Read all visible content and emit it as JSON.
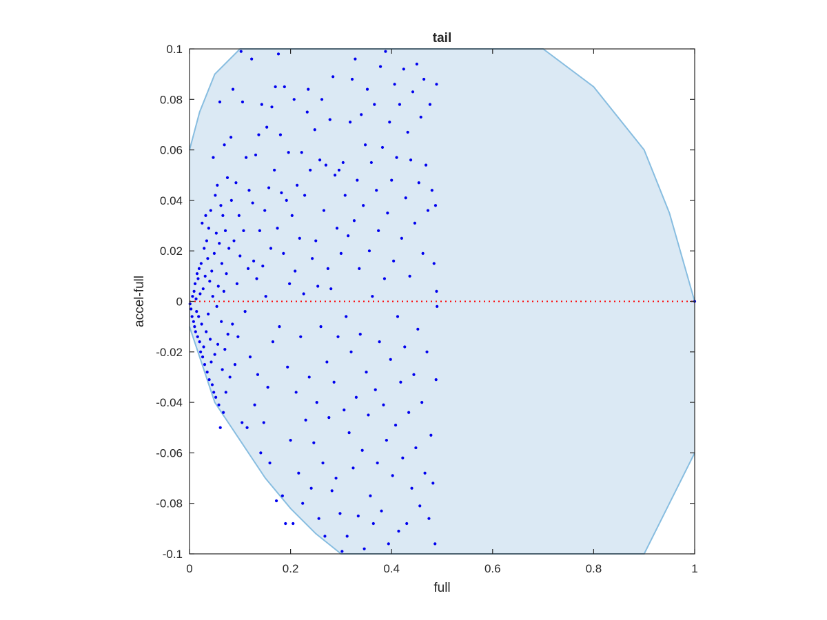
{
  "chart_data": {
    "type": "scatter",
    "title": "tail",
    "xlabel": "full",
    "ylabel": "accel-full",
    "xlim": [
      0,
      1
    ],
    "ylim": [
      -0.1,
      0.1
    ],
    "x_ticks": [
      "0",
      "0.2",
      "0.4",
      "0.6",
      "0.8",
      "1"
    ],
    "y_ticks": [
      "-0.1",
      "-0.08",
      "-0.06",
      "-0.04",
      "-0.02",
      "0",
      "0.02",
      "0.04",
      "0.06",
      "0.08",
      "0.1"
    ],
    "grid": false,
    "legend": "none",
    "region": {
      "description": "shaded feasible region bounded by curves, spanning x 0-1",
      "upper_boundary": [
        [
          0,
          0.06
        ],
        [
          0.02,
          0.075
        ],
        [
          0.05,
          0.09
        ],
        [
          0.1,
          0.1
        ],
        [
          0.7,
          0.1
        ],
        [
          0.8,
          0.085
        ],
        [
          0.9,
          0.06
        ],
        [
          0.95,
          0.035
        ],
        [
          1.0,
          0
        ]
      ],
      "lower_boundary": [
        [
          0,
          -0.01
        ],
        [
          0.05,
          -0.04
        ],
        [
          0.1,
          -0.055
        ],
        [
          0.15,
          -0.07
        ],
        [
          0.2,
          -0.082
        ],
        [
          0.25,
          -0.092
        ],
        [
          0.3,
          -0.1
        ],
        [
          0.9,
          -0.1
        ],
        [
          0.95,
          -0.08
        ],
        [
          1.0,
          -0.06
        ]
      ]
    },
    "reference_line": {
      "y": 0,
      "style": "dotted",
      "color": "#ff0000"
    },
    "points_note": "approximately 1000 blue points; dense cluster near x=0, y=0 and spread for 0 < x < 0.49",
    "points": [
      [
        0.001,
        -0.001
      ],
      [
        0.003,
        -0.003
      ],
      [
        0.005,
        -0.006
      ],
      [
        0.006,
        0.002
      ],
      [
        0.008,
        -0.008
      ],
      [
        0.009,
        0.004
      ],
      [
        0.01,
        -0.01
      ],
      [
        0.011,
        0.007
      ],
      [
        0.012,
        -0.012
      ],
      [
        0.013,
        0.001
      ],
      [
        0.014,
        -0.004
      ],
      [
        0.015,
        0.011
      ],
      [
        0.016,
        -0.014
      ],
      [
        0.017,
        0.009
      ],
      [
        0.018,
        -0.006
      ],
      [
        0.019,
        0.013
      ],
      [
        0.02,
        -0.016
      ],
      [
        0.021,
        0.003
      ],
      [
        0.022,
        -0.02
      ],
      [
        0.023,
        0.015
      ],
      [
        0.024,
        -0.009
      ],
      [
        0.025,
        0.031
      ],
      [
        0.026,
        -0.022
      ],
      [
        0.027,
        0.005
      ],
      [
        0.028,
        -0.018
      ],
      [
        0.029,
        0.021
      ],
      [
        0.03,
        -0.025
      ],
      [
        0.031,
        0.01
      ],
      [
        0.032,
        0.034
      ],
      [
        0.033,
        -0.012
      ],
      [
        0.034,
        0.024
      ],
      [
        0.035,
        -0.028
      ],
      [
        0.036,
        0.017
      ],
      [
        0.037,
        -0.005
      ],
      [
        0.038,
        0.029
      ],
      [
        0.039,
        -0.031
      ],
      [
        0.04,
        0.008
      ],
      [
        0.041,
        -0.015
      ],
      [
        0.042,
        0.036
      ],
      [
        0.043,
        -0.024
      ],
      [
        0.044,
        0.012
      ],
      [
        0.045,
        -0.033
      ],
      [
        0.046,
        0.002
      ],
      [
        0.047,
        0.057
      ],
      [
        0.048,
        -0.036
      ],
      [
        0.049,
        0.019
      ],
      [
        0.05,
        -0.021
      ],
      [
        0.051,
        0.042
      ],
      [
        0.052,
        -0.038
      ],
      [
        0.053,
        0.027
      ],
      [
        0.054,
        -0.002
      ],
      [
        0.055,
        0.046
      ],
      [
        0.056,
        -0.017
      ],
      [
        0.057,
        0.006
      ],
      [
        0.058,
        -0.041
      ],
      [
        0.059,
        0.023
      ],
      [
        0.06,
        0.079
      ],
      [
        0.061,
        -0.05
      ],
      [
        0.062,
        0.038
      ],
      [
        0.063,
        -0.008
      ],
      [
        0.064,
        0.015
      ],
      [
        0.065,
        -0.027
      ],
      [
        0.066,
        0.034
      ],
      [
        0.067,
        -0.044
      ],
      [
        0.068,
        0.004
      ],
      [
        0.069,
        0.062
      ],
      [
        0.07,
        -0.019
      ],
      [
        0.071,
        0.028
      ],
      [
        0.072,
        -0.036
      ],
      [
        0.073,
        0.011
      ],
      [
        0.075,
        0.049
      ],
      [
        0.076,
        -0.013
      ],
      [
        0.078,
        0.021
      ],
      [
        0.08,
        -0.03
      ],
      [
        0.082,
        0.065
      ],
      [
        0.083,
        0.04
      ],
      [
        0.085,
        -0.009
      ],
      [
        0.086,
        0.084
      ],
      [
        0.088,
        0.024
      ],
      [
        0.09,
        -0.025
      ],
      [
        0.092,
        0.047
      ],
      [
        0.094,
        0.007
      ],
      [
        0.096,
        -0.014
      ],
      [
        0.098,
        0.034
      ],
      [
        0.1,
        0.018
      ],
      [
        0.102,
        0.099
      ],
      [
        0.104,
        -0.048
      ],
      [
        0.105,
        0.079
      ],
      [
        0.107,
        0.028
      ],
      [
        0.11,
        -0.004
      ],
      [
        0.112,
        0.057
      ],
      [
        0.114,
        -0.05
      ],
      [
        0.116,
        0.013
      ],
      [
        0.118,
        0.044
      ],
      [
        0.12,
        -0.022
      ],
      [
        0.123,
        0.096
      ],
      [
        0.125,
        0.039
      ],
      [
        0.127,
        0.016
      ],
      [
        0.129,
        -0.041
      ],
      [
        0.131,
        0.058
      ],
      [
        0.133,
        0.009
      ],
      [
        0.135,
        -0.029
      ],
      [
        0.137,
        0.066
      ],
      [
        0.139,
        0.028
      ],
      [
        0.141,
        -0.06
      ],
      [
        0.143,
        0.078
      ],
      [
        0.145,
        0.014
      ],
      [
        0.147,
        -0.048
      ],
      [
        0.149,
        0.036
      ],
      [
        0.151,
        0.002
      ],
      [
        0.153,
        0.069
      ],
      [
        0.155,
        -0.034
      ],
      [
        0.157,
        0.045
      ],
      [
        0.159,
        -0.064
      ],
      [
        0.161,
        0.021
      ],
      [
        0.163,
        0.077
      ],
      [
        0.165,
        -0.016
      ],
      [
        0.168,
        0.052
      ],
      [
        0.17,
        0.085
      ],
      [
        0.172,
        -0.079
      ],
      [
        0.174,
        0.029
      ],
      [
        0.176,
        0.098
      ],
      [
        0.178,
        -0.01
      ],
      [
        0.18,
        0.066
      ],
      [
        0.182,
        0.043
      ],
      [
        0.184,
        -0.077
      ],
      [
        0.186,
        0.019
      ],
      [
        0.188,
        0.085
      ],
      [
        0.19,
        -0.088
      ],
      [
        0.192,
        0.04
      ],
      [
        0.194,
        -0.026
      ],
      [
        0.196,
        0.059
      ],
      [
        0.198,
        0.007
      ],
      [
        0.2,
        -0.055
      ],
      [
        0.203,
        0.034
      ],
      [
        0.205,
        -0.088
      ],
      [
        0.207,
        0.08
      ],
      [
        0.209,
        0.012
      ],
      [
        0.211,
        -0.036
      ],
      [
        0.213,
        0.046
      ],
      [
        0.216,
        -0.068
      ],
      [
        0.218,
        0.025
      ],
      [
        0.22,
        -0.014
      ],
      [
        0.222,
        0.059
      ],
      [
        0.224,
        -0.08
      ],
      [
        0.226,
        0.003
      ],
      [
        0.228,
        0.042
      ],
      [
        0.23,
        -0.047
      ],
      [
        0.233,
        0.075
      ],
      [
        0.235,
        0.084
      ],
      [
        0.237,
        -0.03
      ],
      [
        0.239,
        0.052
      ],
      [
        0.241,
        -0.074
      ],
      [
        0.243,
        0.017
      ],
      [
        0.246,
        -0.056
      ],
      [
        0.248,
        0.068
      ],
      [
        0.25,
        0.024
      ],
      [
        0.252,
        -0.04
      ],
      [
        0.254,
        0.006
      ],
      [
        0.256,
        -0.086
      ],
      [
        0.258,
        0.056
      ],
      [
        0.26,
        -0.01
      ],
      [
        0.262,
        0.08
      ],
      [
        0.264,
        -0.064
      ],
      [
        0.266,
        0.036
      ],
      [
        0.268,
        -0.093
      ],
      [
        0.27,
        0.054
      ],
      [
        0.272,
        -0.024
      ],
      [
        0.274,
        0.013
      ],
      [
        0.276,
        -0.046
      ],
      [
        0.278,
        0.072
      ],
      [
        0.28,
        0.005
      ],
      [
        0.282,
        -0.075
      ],
      [
        0.284,
        0.089
      ],
      [
        0.286,
        -0.032
      ],
      [
        0.288,
        0.05
      ],
      [
        0.29,
        -0.07
      ],
      [
        0.292,
        0.029
      ],
      [
        0.294,
        -0.014
      ],
      [
        0.296,
        0.052
      ],
      [
        0.298,
        -0.084
      ],
      [
        0.3,
        0.019
      ],
      [
        0.302,
        -0.099
      ],
      [
        0.304,
        0.055
      ],
      [
        0.306,
        -0.043
      ],
      [
        0.308,
        0.042
      ],
      [
        0.31,
        -0.006
      ],
      [
        0.312,
        -0.093
      ],
      [
        0.314,
        0.026
      ],
      [
        0.316,
        -0.052
      ],
      [
        0.318,
        0.071
      ],
      [
        0.32,
        -0.02
      ],
      [
        0.322,
        0.088
      ],
      [
        0.324,
        -0.066
      ],
      [
        0.326,
        0.032
      ],
      [
        0.328,
        0.096
      ],
      [
        0.33,
        -0.038
      ],
      [
        0.332,
        0.048
      ],
      [
        0.334,
        -0.085
      ],
      [
        0.336,
        0.013
      ],
      [
        0.338,
        -0.013
      ],
      [
        0.34,
        0.074
      ],
      [
        0.342,
        -0.059
      ],
      [
        0.344,
        0.038
      ],
      [
        0.346,
        -0.098
      ],
      [
        0.348,
        0.062
      ],
      [
        0.35,
        -0.028
      ],
      [
        0.352,
        0.084
      ],
      [
        0.354,
        -0.045
      ],
      [
        0.356,
        0.02
      ],
      [
        0.358,
        -0.077
      ],
      [
        0.36,
        0.055
      ],
      [
        0.362,
        0.002
      ],
      [
        0.364,
        -0.088
      ],
      [
        0.366,
        0.078
      ],
      [
        0.368,
        -0.035
      ],
      [
        0.37,
        0.044
      ],
      [
        0.372,
        -0.064
      ],
      [
        0.374,
        0.028
      ],
      [
        0.376,
        -0.016
      ],
      [
        0.378,
        0.093
      ],
      [
        0.38,
        -0.083
      ],
      [
        0.382,
        0.061
      ],
      [
        0.384,
        -0.041
      ],
      [
        0.386,
        0.009
      ],
      [
        0.388,
        0.099
      ],
      [
        0.39,
        -0.055
      ],
      [
        0.392,
        0.035
      ],
      [
        0.394,
        -0.096
      ],
      [
        0.396,
        0.071
      ],
      [
        0.398,
        -0.023
      ],
      [
        0.4,
        0.048
      ],
      [
        0.402,
        -0.069
      ],
      [
        0.404,
        0.016
      ],
      [
        0.406,
        0.086
      ],
      [
        0.408,
        -0.049
      ],
      [
        0.41,
        0.057
      ],
      [
        0.412,
        -0.006
      ],
      [
        0.414,
        -0.091
      ],
      [
        0.416,
        0.078
      ],
      [
        0.418,
        -0.032
      ],
      [
        0.42,
        0.025
      ],
      [
        0.422,
        -0.062
      ],
      [
        0.424,
        0.092
      ],
      [
        0.426,
        -0.018
      ],
      [
        0.428,
        0.041
      ],
      [
        0.43,
        -0.088
      ],
      [
        0.432,
        0.067
      ],
      [
        0.434,
        -0.044
      ],
      [
        0.436,
        0.01
      ],
      [
        0.438,
        0.056
      ],
      [
        0.44,
        -0.074
      ],
      [
        0.442,
        0.083
      ],
      [
        0.444,
        -0.029
      ],
      [
        0.446,
        0.031
      ],
      [
        0.448,
        -0.058
      ],
      [
        0.45,
        0.094
      ],
      [
        0.452,
        -0.011
      ],
      [
        0.454,
        0.047
      ],
      [
        0.456,
        -0.081
      ],
      [
        0.458,
        0.073
      ],
      [
        0.46,
        -0.04
      ],
      [
        0.462,
        0.019
      ],
      [
        0.464,
        0.088
      ],
      [
        0.466,
        -0.068
      ],
      [
        0.468,
        0.054
      ],
      [
        0.47,
        -0.02
      ],
      [
        0.472,
        0.036
      ],
      [
        0.474,
        -0.086
      ],
      [
        0.476,
        0.078
      ],
      [
        0.478,
        -0.053
      ],
      [
        0.48,
        0.044
      ],
      [
        0.482,
        -0.072
      ],
      [
        0.484,
        0.015
      ],
      [
        0.486,
        -0.096
      ],
      [
        0.487,
        0.038
      ],
      [
        0.488,
        -0.031
      ],
      [
        0.489,
        0.004
      ],
      [
        0.489,
        0.086
      ],
      [
        0.49,
        -0.002
      ],
      [
        1.0,
        0.0
      ]
    ]
  }
}
